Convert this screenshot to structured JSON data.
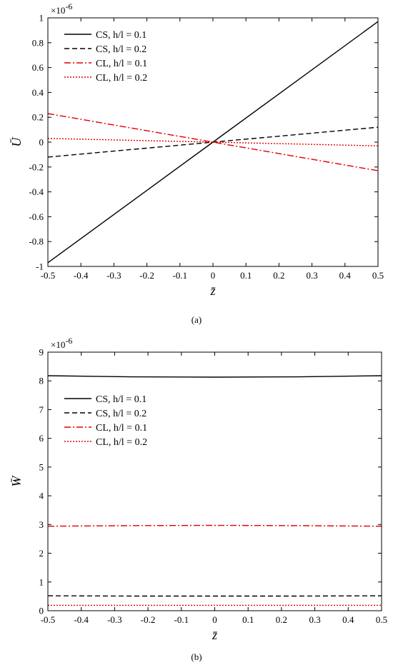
{
  "figure": {
    "captions": [
      "(a)",
      "(b)"
    ]
  },
  "chart_data": [
    {
      "type": "line",
      "panel": "(a)",
      "xlabel": "z̄",
      "ylabel": "Ū",
      "exponent": "×10",
      "exponent_power": "-6",
      "xlim": [
        -0.5,
        0.5
      ],
      "ylim": [
        -1,
        1
      ],
      "xticks": [
        -0.5,
        -0.4,
        -0.3,
        -0.2,
        -0.1,
        0,
        0.1,
        0.2,
        0.3,
        0.4,
        0.5
      ],
      "xtick_labels": [
        "-0.5",
        "-0.4",
        "-0.3",
        "-0.2",
        "-0.1",
        "0",
        "0.1",
        "0.2",
        "0.3",
        "0.4",
        "0.5"
      ],
      "yticks": [
        -1,
        -0.8,
        -0.6,
        -0.4,
        -0.2,
        0,
        0.2,
        0.4,
        0.6,
        0.8,
        1
      ],
      "ytick_labels": [
        "-1",
        "-0.8",
        "-0.6",
        "-0.4",
        "-0.2",
        "0",
        "0.2",
        "0.4",
        "0.6",
        "0.8",
        "1"
      ],
      "grid": false,
      "legend_position": "top-left",
      "series": [
        {
          "name": "CS, h/l = 0.1",
          "color": "#000000",
          "style": "solid",
          "x": [
            -0.5,
            0,
            0.5
          ],
          "y": [
            -0.97,
            0,
            0.97
          ]
        },
        {
          "name": "CS, h/l = 0.2",
          "color": "#000000",
          "style": "dashed",
          "x": [
            -0.5,
            0,
            0.5
          ],
          "y": [
            -0.12,
            0,
            0.12
          ]
        },
        {
          "name": "CL, h/l = 0.1",
          "color": "#e00000",
          "style": "dashdot",
          "x": [
            -0.5,
            0,
            0.5
          ],
          "y": [
            0.23,
            0,
            -0.23
          ]
        },
        {
          "name": "CL, h/l = 0.2",
          "color": "#e00000",
          "style": "dotted",
          "x": [
            -0.5,
            0,
            0.5
          ],
          "y": [
            0.03,
            0,
            -0.03
          ]
        }
      ]
    },
    {
      "type": "line",
      "panel": "(b)",
      "xlabel": "z̄",
      "ylabel": "W̄",
      "exponent": "×10",
      "exponent_power": "-6",
      "xlim": [
        -0.5,
        0.5
      ],
      "ylim": [
        0,
        9
      ],
      "xticks": [
        -0.5,
        -0.4,
        -0.3,
        -0.2,
        -0.1,
        0,
        0.1,
        0.2,
        0.3,
        0.4,
        0.5
      ],
      "xtick_labels": [
        "-0.5",
        "-0.4",
        "-0.3",
        "-0.2",
        "-0.1",
        "0",
        "0.1",
        "0.2",
        "0.3",
        "0.4",
        "0.5"
      ],
      "yticks": [
        0,
        1,
        2,
        3,
        4,
        5,
        6,
        7,
        8,
        9
      ],
      "ytick_labels": [
        "0",
        "1",
        "2",
        "3",
        "4",
        "5",
        "6",
        "7",
        "8",
        "9"
      ],
      "grid": false,
      "legend_position": "upper-left",
      "series": [
        {
          "name": "CS, h/l = 0.1",
          "color": "#000000",
          "style": "solid",
          "x": [
            -0.5,
            -0.25,
            0,
            0.25,
            0.5
          ],
          "y": [
            8.18,
            8.14,
            8.13,
            8.14,
            8.18
          ]
        },
        {
          "name": "CS, h/l = 0.2",
          "color": "#000000",
          "style": "dashed",
          "x": [
            -0.5,
            -0.25,
            0,
            0.25,
            0.5
          ],
          "y": [
            0.52,
            0.51,
            0.51,
            0.51,
            0.52
          ]
        },
        {
          "name": "CL, h/l = 0.1",
          "color": "#e00000",
          "style": "dashdot",
          "x": [
            -0.5,
            -0.25,
            0,
            0.25,
            0.5
          ],
          "y": [
            2.94,
            2.96,
            2.97,
            2.96,
            2.94
          ]
        },
        {
          "name": "CL, h/l = 0.2",
          "color": "#e00000",
          "style": "dotted",
          "x": [
            -0.5,
            -0.25,
            0,
            0.25,
            0.5
          ],
          "y": [
            0.19,
            0.19,
            0.19,
            0.19,
            0.19
          ]
        }
      ]
    }
  ]
}
